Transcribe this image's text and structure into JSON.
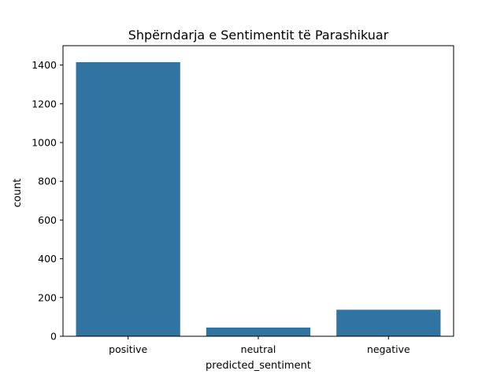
{
  "chart_data": {
    "type": "bar",
    "title": "Shpërndarja e Sentimentit të Parashikuar",
    "xlabel": "predicted_sentiment",
    "ylabel": "count",
    "categories": [
      "positive",
      "neutral",
      "negative"
    ],
    "values": [
      1415,
      45,
      137
    ],
    "ylim": [
      0,
      1500
    ],
    "yticks": [
      0,
      200,
      400,
      600,
      800,
      1000,
      1200,
      1400
    ],
    "bar_color": "#3274a1",
    "grid": false,
    "legend": false
  }
}
